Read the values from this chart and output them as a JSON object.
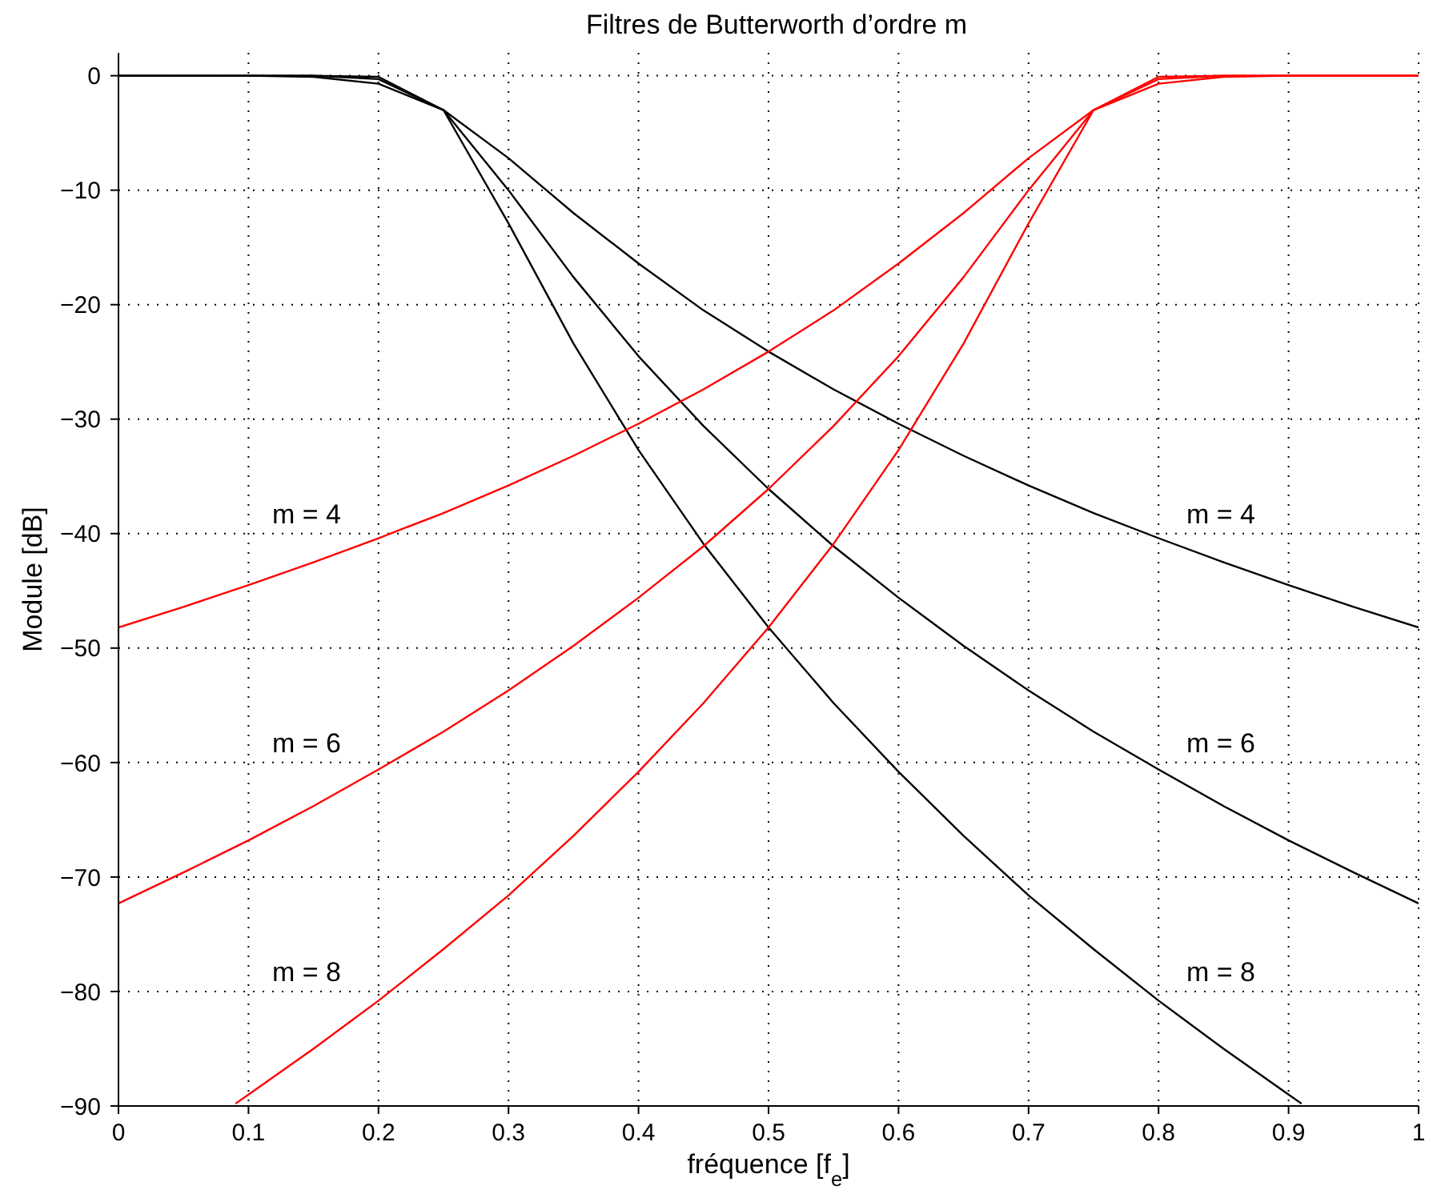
{
  "chart_data": {
    "type": "line",
    "title": "Filtres de Butterworth d’ordre m",
    "xlabel": "fréquence [f$_{e}$]",
    "ylabel": "Module [dB]",
    "xlim": [
      0,
      1
    ],
    "ylim": [
      -90,
      2
    ],
    "xticks": [
      0,
      0.1,
      0.2,
      0.3,
      0.4,
      0.5,
      0.6,
      0.7,
      0.8,
      0.9,
      1
    ],
    "yticks": [
      {
        "value": -90,
        "label": "−90"
      },
      {
        "value": -80,
        "label": "−80"
      },
      {
        "value": -70,
        "label": "−70"
      },
      {
        "value": -60,
        "label": "−60"
      },
      {
        "value": -50,
        "label": "−50"
      },
      {
        "value": -40,
        "label": "−40"
      },
      {
        "value": -30,
        "label": "−30"
      },
      {
        "value": -20,
        "label": "−20"
      },
      {
        "value": -10,
        "label": "−10"
      },
      0
    ],
    "grid": true,
    "marker": "none",
    "line_style": "solid",
    "series": [
      {
        "color": "#000000",
        "x": [
          0,
          0.05,
          0.1,
          0.15,
          0.2,
          0.25,
          0.3,
          0.35,
          0.4,
          0.45,
          0.5,
          0.55,
          0.6,
          0.65,
          0.7,
          0.75,
          0.8,
          0.85,
          0.9,
          0.95,
          1
        ],
        "values": [
          0,
          0,
          0,
          -0.1,
          -0.7,
          -3.0,
          -7.2,
          -12.0,
          -16.4,
          -20.5,
          -24.1,
          -27.4,
          -30.4,
          -33.2,
          -35.8,
          -38.2,
          -40.4,
          -42.5,
          -44.5,
          -46.4,
          -48.2
        ]
      },
      {
        "color": "#000000",
        "x": [
          0,
          0.05,
          0.1,
          0.15,
          0.2,
          0.25,
          0.3,
          0.35,
          0.4,
          0.45,
          0.5,
          0.55,
          0.6,
          0.65,
          0.7,
          0.75,
          0.8,
          0.85,
          0.9,
          0.95,
          1
        ],
        "values": [
          0,
          0,
          0,
          0,
          -0.3,
          -3.0,
          -10.0,
          -17.6,
          -24.5,
          -30.6,
          -36.1,
          -41.1,
          -45.6,
          -49.8,
          -53.7,
          -57.3,
          -60.6,
          -63.8,
          -66.8,
          -69.6,
          -72.3
        ]
      },
      {
        "color": "#000000",
        "x": [
          0,
          0.05,
          0.1,
          0.15,
          0.2,
          0.25,
          0.3,
          0.35,
          0.4,
          0.45,
          0.5,
          0.55,
          0.6,
          0.65,
          0.7,
          0.75,
          0.8,
          0.85,
          0.9,
          0.91
        ],
        "values": [
          0,
          0,
          0,
          0,
          -0.1,
          -3.0,
          -12.9,
          -23.4,
          -32.7,
          -40.9,
          -48.2,
          -54.8,
          -60.8,
          -66.4,
          -71.6,
          -76.3,
          -80.8,
          -85.0,
          -89.0,
          -89.8
        ]
      },
      {
        "color": "#ff0000",
        "x": [
          0,
          0.05,
          0.1,
          0.15,
          0.2,
          0.25,
          0.3,
          0.35,
          0.4,
          0.45,
          0.5,
          0.55,
          0.6,
          0.65,
          0.7,
          0.75,
          0.8,
          0.85,
          0.9,
          0.95,
          1
        ],
        "values": [
          -48.2,
          -46.4,
          -44.5,
          -42.5,
          -40.4,
          -38.2,
          -35.8,
          -33.2,
          -30.4,
          -27.4,
          -24.1,
          -20.5,
          -16.4,
          -12.0,
          -7.2,
          -3.0,
          -0.7,
          -0.1,
          0,
          0,
          0
        ]
      },
      {
        "color": "#ff0000",
        "x": [
          0,
          0.05,
          0.1,
          0.15,
          0.2,
          0.25,
          0.3,
          0.35,
          0.4,
          0.45,
          0.5,
          0.55,
          0.6,
          0.65,
          0.7,
          0.75,
          0.8,
          0.85,
          0.9,
          0.95,
          1
        ],
        "values": [
          -72.3,
          -69.6,
          -66.8,
          -63.8,
          -60.6,
          -57.3,
          -53.7,
          -49.8,
          -45.6,
          -41.1,
          -36.1,
          -30.6,
          -24.5,
          -17.6,
          -10.0,
          -3.0,
          -0.3,
          0,
          0,
          0,
          0
        ]
      },
      {
        "color": "#ff0000",
        "x": [
          0.09,
          0.1,
          0.15,
          0.2,
          0.25,
          0.3,
          0.35,
          0.4,
          0.45,
          0.5,
          0.55,
          0.6,
          0.65,
          0.7,
          0.75,
          0.8,
          0.85,
          0.9,
          0.95,
          1
        ],
        "values": [
          -89.8,
          -89.0,
          -85.0,
          -80.8,
          -76.3,
          -71.6,
          -66.4,
          -60.8,
          -54.8,
          -48.2,
          -40.9,
          -32.7,
          -23.4,
          -12.9,
          -3.0,
          -0.1,
          0,
          0,
          0,
          0
        ]
      }
    ],
    "annotations": [
      "m = 4",
      "m = 6",
      "m = 8",
      "m = 4",
      "m = 6",
      "m = 8"
    ]
  }
}
